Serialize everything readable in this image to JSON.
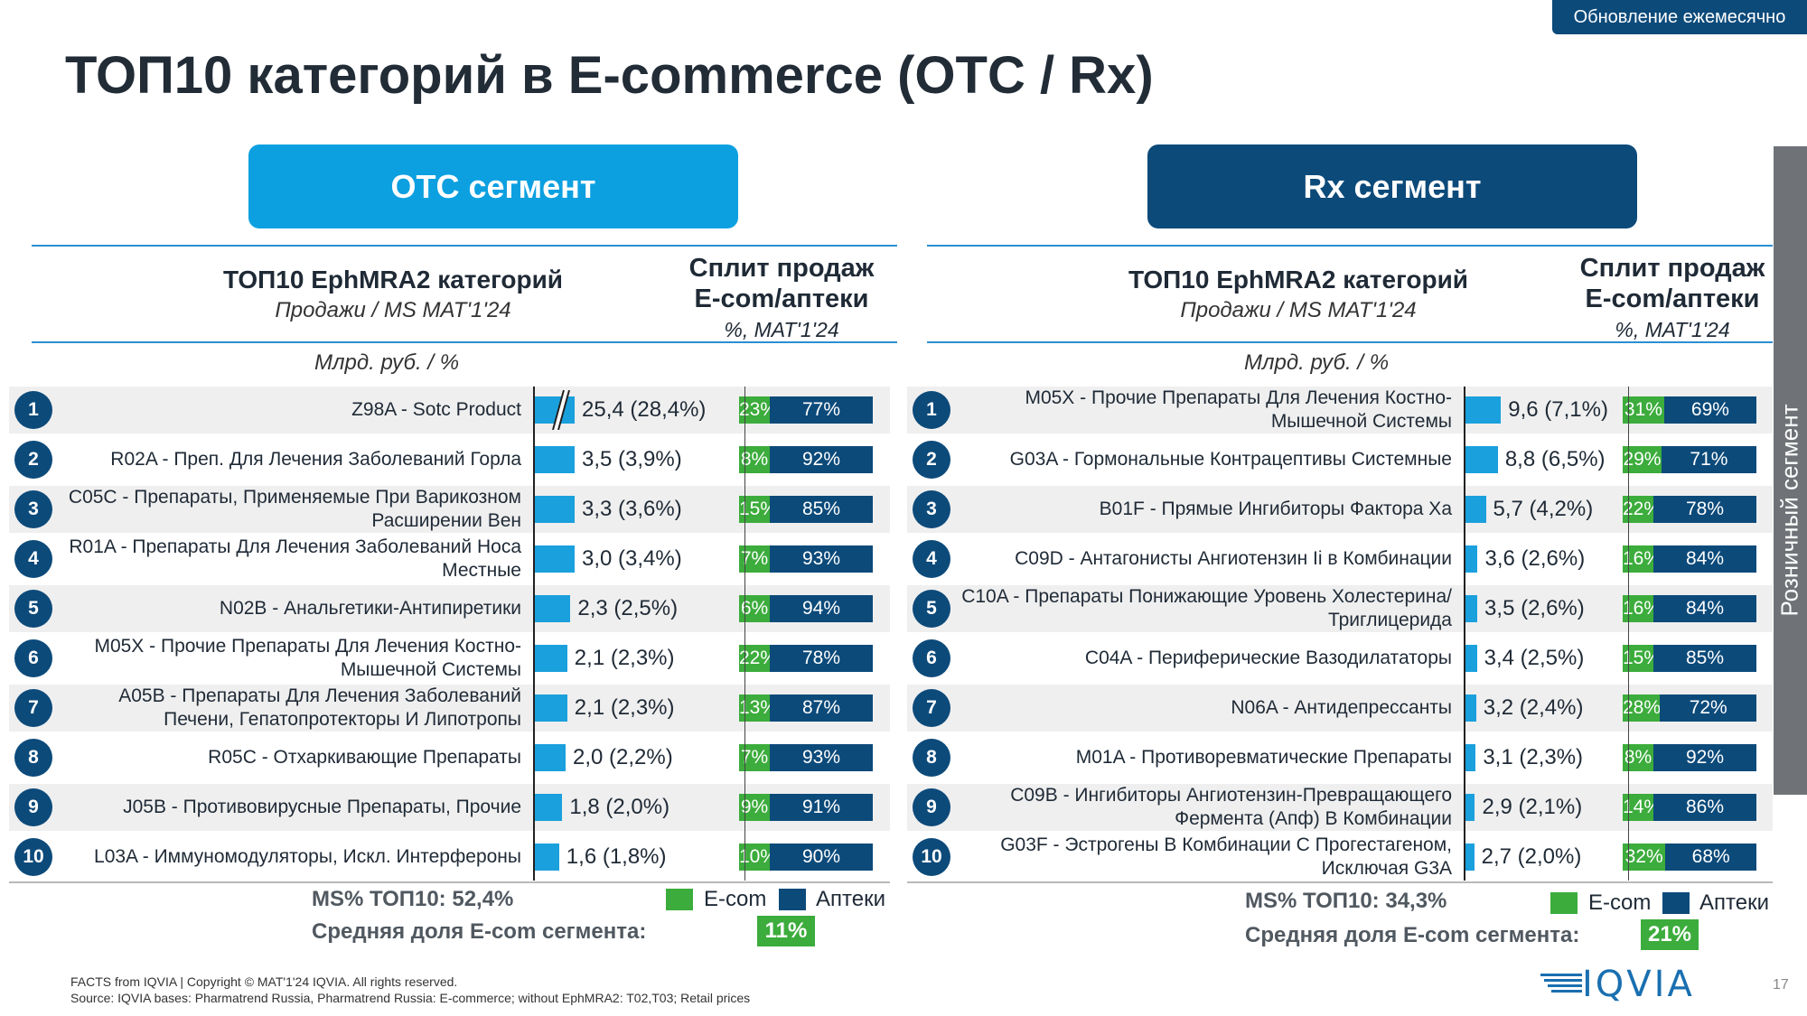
{
  "badge": "Обновление ежемесячно",
  "title": "ТОП10 категорий в E-commerce (OTC / Rx)",
  "side_label": "Розничный сегмент",
  "colors": {
    "ecom": "#3cac3c",
    "apteki": "#0c4a7a",
    "otc": "#0ca0e0",
    "rx": "#0c4a7a",
    "bar": "#1aa0dd"
  },
  "headers": {
    "top10": "ТОП10 EphMRA2 категорий",
    "sales": "Продажи / MS MAT'1'24",
    "split1": "Сплит продаж",
    "split2": "E-com/аптеки",
    "split3": "%, MAT'1'24",
    "unit": "Млрд. руб. / %"
  },
  "legend": {
    "ecom": "E-com",
    "apteki": "Аптеки"
  },
  "avg_label": "Средняя доля E-com сегмента:",
  "otc": {
    "segment": "OTC сегмент",
    "ms_total": "MS% ТОП10: 52,4%",
    "avg_ecom": "11%"
  },
  "rx": {
    "segment": "Rx сегмент",
    "ms_total": "MS% ТОП10: 34,3%",
    "avg_ecom": "21%"
  },
  "chart_data": [
    {
      "type": "bar",
      "series_ref": "otc",
      "rows": [
        {
          "rank": "1",
          "category": "Z98A - Sotc Product",
          "value": 25.4,
          "label": "25,4 (28,4%)",
          "ecom": 23,
          "apteki": 77,
          "broken": true
        },
        {
          "rank": "2",
          "category": "R02A - Преп. Для Лечения Заболеваний Горла",
          "value": 3.5,
          "label": "3,5 (3,9%)",
          "ecom": 8,
          "apteki": 92
        },
        {
          "rank": "3",
          "category": "C05C - Препараты, Применяемые При Варикозном Расширении Вен",
          "value": 3.3,
          "label": "3,3 (3,6%)",
          "ecom": 15,
          "apteki": 85
        },
        {
          "rank": "4",
          "category": "R01A - Препараты Для Лечения Заболеваний Носа Местные",
          "value": 3.0,
          "label": "3,0 (3,4%)",
          "ecom": 7,
          "apteki": 93
        },
        {
          "rank": "5",
          "category": "N02B - Анальгетики-Антипиретики",
          "value": 2.3,
          "label": "2,3 (2,5%)",
          "ecom": 6,
          "apteki": 94
        },
        {
          "rank": "6",
          "category": "M05X - Прочие Препараты Для Лечения Костно-Мышечной Системы",
          "value": 2.1,
          "label": "2,1 (2,3%)",
          "ecom": 22,
          "apteki": 78
        },
        {
          "rank": "7",
          "category": "A05B - Препараты Для Лечения Заболеваний Печени, Гепатопротекторы И Липотропы",
          "value": 2.1,
          "label": "2,1 (2,3%)",
          "ecom": 13,
          "apteki": 87
        },
        {
          "rank": "8",
          "category": "R05C - Отхаркивающие Препараты",
          "value": 2.0,
          "label": "2,0 (2,2%)",
          "ecom": 7,
          "apteki": 93
        },
        {
          "rank": "9",
          "category": "J05B - Противовирусные Препараты, Прочие",
          "value": 1.8,
          "label": "1,8 (2,0%)",
          "ecom": 9,
          "apteki": 91
        },
        {
          "rank": "10",
          "category": "L03A - Иммуномодуляторы, Искл. Интерфероны",
          "value": 1.6,
          "label": "1,6 (1,8%)",
          "ecom": 10,
          "apteki": 90
        }
      ]
    },
    {
      "type": "bar",
      "series_ref": "rx",
      "rows": [
        {
          "rank": "1",
          "category": "M05X - Прочие Препараты Для Лечения Костно-Мышечной Системы",
          "value": 9.6,
          "label": "9,6 (7,1%)",
          "ecom": 31,
          "apteki": 69
        },
        {
          "rank": "2",
          "category": "G03A - Гормональные Контрацептивы Системные",
          "value": 8.8,
          "label": "8,8 (6,5%)",
          "ecom": 29,
          "apteki": 71
        },
        {
          "rank": "3",
          "category": "B01F - Прямые Ингибиторы Фактора Ха",
          "value": 5.7,
          "label": "5,7 (4,2%)",
          "ecom": 22,
          "apteki": 78
        },
        {
          "rank": "4",
          "category": "C09D - Антагонисты Ангиотензин Ii в Комбинации",
          "value": 3.6,
          "label": "3,6 (2,6%)",
          "ecom": 16,
          "apteki": 84
        },
        {
          "rank": "5",
          "category": "C10A - Препараты Понижающие Уровень Холестерина/Триглицерида",
          "value": 3.5,
          "label": "3,5 (2,6%)",
          "ecom": 16,
          "apteki": 84
        },
        {
          "rank": "6",
          "category": "C04A - Периферические Вазодилататоры",
          "value": 3.4,
          "label": "3,4 (2,5%)",
          "ecom": 15,
          "apteki": 85
        },
        {
          "rank": "7",
          "category": "N06A - Антидепрессанты",
          "value": 3.2,
          "label": "3,2 (2,4%)",
          "ecom": 28,
          "apteki": 72
        },
        {
          "rank": "8",
          "category": "M01A - Противоревматические Препараты",
          "value": 3.1,
          "label": "3,1 (2,3%)",
          "ecom": 8,
          "apteki": 92
        },
        {
          "rank": "9",
          "category": "C09B - Ингибиторы Ангиотензин-Превращающего Фермента (Апф) В Комбинации",
          "value": 2.9,
          "label": "2,9 (2,1%)",
          "ecom": 14,
          "apteki": 86
        },
        {
          "rank": "10",
          "category": "G03F - Эстрогены В Комбинации С Прогестагеном, Исключая G3A",
          "value": 2.7,
          "label": "2,7 (2,0%)",
          "ecom": 32,
          "apteki": 68
        }
      ]
    }
  ],
  "footer": {
    "line1": "FACTS from IQVIA | Copyright © MAT'1'24 IQVIA. All rights reserved.",
    "line2": "Source: IQVIA bases: Pharmatrend Russia, Pharmatrend Russia: E-commerce; without EphMRA2: T02,T03; Retail prices"
  },
  "page_number": "17",
  "logo": "IQVIA"
}
